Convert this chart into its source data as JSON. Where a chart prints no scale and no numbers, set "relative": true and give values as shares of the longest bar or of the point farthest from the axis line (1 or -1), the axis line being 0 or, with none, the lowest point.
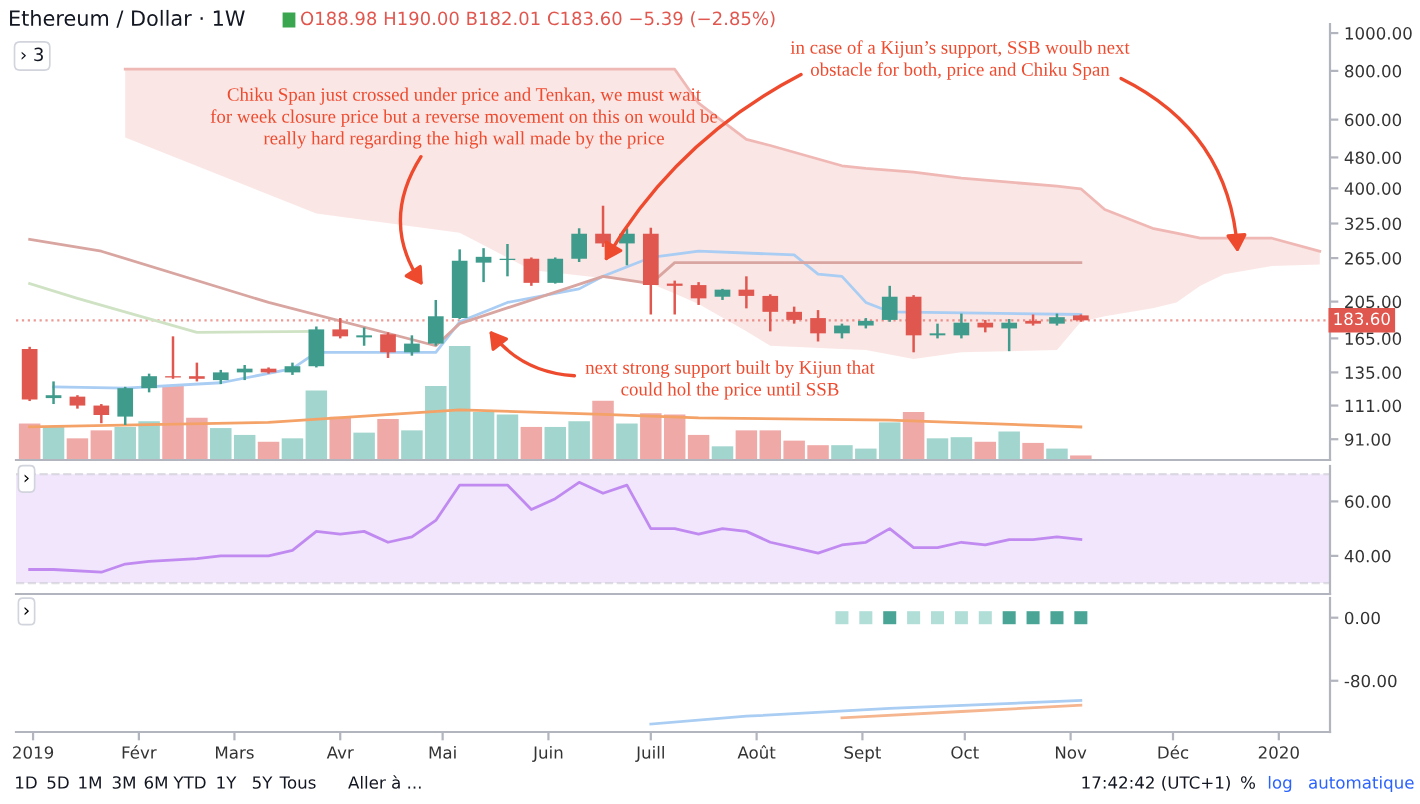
{
  "chart_data": [
    {
      "type": "candlestick",
      "title": "Ethereum / Dollar · 1W",
      "subtitle": "O188.98 H190.00 B182.01 C183.60 −5.39 (−2.85%)",
      "x": [
        "2018-12-31",
        "2019-01-07",
        "2019-01-14",
        "2019-01-21",
        "2019-01-28",
        "2019-02-04",
        "2019-02-11",
        "2019-02-18",
        "2019-02-25",
        "2019-03-04",
        "2019-03-11",
        "2019-03-18",
        "2019-03-25",
        "2019-04-01",
        "2019-04-08",
        "2019-04-15",
        "2019-04-22",
        "2019-04-29",
        "2019-05-06",
        "2019-05-13",
        "2019-05-20",
        "2019-05-27",
        "2019-06-03",
        "2019-06-10",
        "2019-06-17",
        "2019-06-24",
        "2019-07-01",
        "2019-07-08",
        "2019-07-15",
        "2019-07-22",
        "2019-07-29",
        "2019-08-05",
        "2019-08-12",
        "2019-08-19",
        "2019-08-26",
        "2019-09-02",
        "2019-09-09",
        "2019-09-16",
        "2019-09-23",
        "2019-09-30",
        "2019-10-07",
        "2019-10-14",
        "2019-10-21",
        "2019-10-28",
        "2019-11-04"
      ],
      "ohlc": [
        [
          155,
          157,
          114,
          115
        ],
        [
          116,
          128,
          112,
          118
        ],
        [
          117,
          118,
          109,
          111
        ],
        [
          111,
          112,
          100,
          105
        ],
        [
          104,
          124,
          99,
          123
        ],
        [
          123,
          134,
          120,
          132
        ],
        [
          132,
          167,
          130,
          131
        ],
        [
          132,
          143,
          128,
          130
        ],
        [
          129,
          137,
          126,
          135
        ],
        [
          135,
          141,
          129,
          138
        ],
        [
          138,
          139,
          134,
          135
        ],
        [
          135,
          143,
          133,
          140
        ],
        [
          140,
          177,
          139,
          174
        ],
        [
          174,
          186,
          165,
          167
        ],
        [
          166,
          176,
          158,
          168
        ],
        [
          169,
          171,
          147,
          152
        ],
        [
          152,
          168,
          149,
          160
        ],
        [
          160,
          207,
          158,
          188
        ],
        [
          186,
          279,
          185,
          261
        ],
        [
          258,
          281,
          230,
          267
        ],
        [
          262,
          288,
          238,
          264
        ],
        [
          264,
          266,
          225,
          229
        ],
        [
          229,
          266,
          228,
          264
        ],
        [
          264,
          316,
          259,
          306
        ],
        [
          306,
          361,
          283,
          289
        ],
        [
          289,
          316,
          254,
          306
        ],
        [
          306,
          317,
          190,
          226
        ],
        [
          228,
          232,
          190,
          225
        ],
        [
          226,
          230,
          201,
          209
        ],
        [
          211,
          221,
          207,
          220
        ],
        [
          220,
          238,
          197,
          212
        ],
        [
          212,
          214,
          172,
          193
        ],
        [
          193,
          199,
          180,
          184
        ],
        [
          186,
          195,
          162,
          170
        ],
        [
          170,
          180,
          165,
          178
        ],
        [
          178,
          186,
          175,
          183
        ],
        [
          184,
          225,
          182,
          211
        ],
        [
          211,
          213,
          152,
          168
        ],
        [
          168,
          180,
          165,
          170
        ],
        [
          168,
          191,
          165,
          181
        ],
        [
          181,
          184,
          171,
          176
        ],
        [
          175,
          185,
          153,
          181
        ],
        [
          183,
          190,
          178,
          180
        ],
        [
          180,
          191,
          178,
          187
        ],
        [
          188.98,
          190.0,
          182.01,
          183.6
        ]
      ],
      "colors": [
        "#e0574f",
        "#3f9c8c",
        "#e0574f",
        "#e0574f",
        "#3f9c8c",
        "#3f9c8c",
        "#e0574f",
        "#e0574f",
        "#3f9c8c",
        "#3f9c8c",
        "#e0574f",
        "#3f9c8c",
        "#3f9c8c",
        "#e0574f",
        "#3f9c8c",
        "#e0574f",
        "#3f9c8c",
        "#3f9c8c",
        "#3f9c8c",
        "#3f9c8c",
        "#3f9c8c",
        "#e0574f",
        "#3f9c8c",
        "#3f9c8c",
        "#e0574f",
        "#3f9c8c",
        "#e0574f",
        "#e0574f",
        "#e0574f",
        "#3f9c8c",
        "#e0574f",
        "#e0574f",
        "#e0574f",
        "#e0574f",
        "#3f9c8c",
        "#3f9c8c",
        "#3f9c8c",
        "#e0574f",
        "#3f9c8c",
        "#3f9c8c",
        "#e0574f",
        "#3f9c8c",
        "#e0574f",
        "#3f9c8c",
        "#e0574f"
      ],
      "series": [
        {
          "type": "line",
          "color": "#f0b8b4",
          "x": [
            "2019-01-28",
            "2019-03-25",
            "2019-05-06",
            "2019-05-27",
            "2019-07-01",
            "2019-07-08",
            "2019-07-15",
            "2019-07-29",
            "2019-08-05",
            "2019-08-26",
            "2019-09-02",
            "2019-09-16",
            "2019-09-30",
            "2019-10-28",
            "2019-11-04",
            "2019-11-11",
            "2019-11-25",
            "2019-12-02",
            "2019-12-09",
            "2019-12-16",
            "2019-12-30",
            "2020-01-13"
          ],
          "lower": [
            540,
            345,
            308,
            247,
            228,
            215,
            202,
            172,
            158,
            155,
            154,
            146,
            152,
            154,
            182,
            188,
            197,
            204,
            225,
            241,
            253,
            255
          ],
          "upper": [
            808,
            808,
            808,
            808,
            808,
            808,
            661,
            534,
            515,
            457,
            450,
            440,
            425,
            405,
            399,
            353,
            316,
            307,
            298,
            298,
            298,
            276
          ],
          "values": [
            808,
            808,
            808,
            808,
            808,
            808,
            661,
            534,
            515,
            457,
            450,
            440,
            425,
            405,
            399,
            353,
            316,
            307,
            298,
            298,
            298,
            276
          ]
        },
        {
          "type": "line",
          "color": "#a9cdf3",
          "x": [
            "2019-01-07",
            "2019-01-28",
            "2019-02-25",
            "2019-03-18",
            "2019-03-25",
            "2019-04-29",
            "2019-05-06",
            "2019-05-20",
            "2019-06-10",
            "2019-06-17",
            "2019-07-01",
            "2019-07-15",
            "2019-08-12",
            "2019-08-19",
            "2019-08-26",
            "2019-09-02",
            "2019-09-09",
            "2019-11-04"
          ],
          "values": [
            124,
            123,
            127,
            138,
            152,
            152,
            182,
            204,
            221,
            238,
            266,
            276,
            270,
            241,
            238,
            204,
            193,
            190
          ]
        },
        {
          "type": "line",
          "color": "#d9a5a0",
          "x": [
            "2018-12-31",
            "2019-01-21",
            "2019-03-11",
            "2019-04-29",
            "2019-05-06",
            "2019-06-17",
            "2019-07-01",
            "2019-07-08",
            "2019-11-04"
          ],
          "values": [
            296,
            276,
            204,
            158,
            180,
            238,
            228,
            258,
            258
          ]
        },
        {
          "type": "line",
          "color": "#cfe3c4",
          "x": [
            "2018-12-31",
            "2019-01-14",
            "2019-02-18",
            "2019-03-25"
          ],
          "values": [
            228,
            209,
            171,
            172
          ]
        }
      ],
      "ref_lines": [
        {
          "axis": "y",
          "value": 183.6,
          "label": "183.60",
          "color": "#e0574f",
          "line_style": "dotted"
        }
      ],
      "annotations": [
        "Chiku Span just crossed under price and Tenkan, we must wait\nfor week closure price but a reverse movement on this on would be\nreally hard regarding the high wall made by the price",
        "in case of a Kijun’s support, SSB woulb next\nobstacle for both, price and Chiku Span",
        "next strong support built by Kijun that\ncould hol the price until SSB",
        "› 3"
      ],
      "log": "y",
      "xlim": [
        "2018-12-27",
        "2020-01-16"
      ],
      "ylim": [
        80.5,
        1055
      ],
      "yticks": [
        {
          "value": 1000,
          "label": "1000.00"
        },
        {
          "value": 800,
          "label": "800.00"
        },
        {
          "value": 600,
          "label": "600.00"
        },
        {
          "value": 480,
          "label": "480.00"
        },
        {
          "value": 400,
          "label": "400.00"
        },
        {
          "value": 325,
          "label": "325.00"
        },
        {
          "value": 265,
          "label": "265.00"
        },
        {
          "value": 205,
          "label": "205.00"
        },
        {
          "value": 165,
          "label": "165.00"
        },
        {
          "value": 135,
          "label": "135.00"
        },
        {
          "value": 111,
          "label": "111.00"
        },
        {
          "value": 91,
          "label": "91.00"
        }
      ],
      "tick_labels": "y"
    },
    {
      "type": "bar",
      "relative": true,
      "tick_labels": false,
      "xlim": [
        "2018-12-27",
        "2020-01-16"
      ],
      "x": [
        "2018-12-31",
        "2019-01-07",
        "2019-01-14",
        "2019-01-21",
        "2019-01-28",
        "2019-02-04",
        "2019-02-11",
        "2019-02-18",
        "2019-02-25",
        "2019-03-04",
        "2019-03-11",
        "2019-03-18",
        "2019-03-25",
        "2019-04-01",
        "2019-04-08",
        "2019-04-15",
        "2019-04-22",
        "2019-04-29",
        "2019-05-06",
        "2019-05-13",
        "2019-05-20",
        "2019-05-27",
        "2019-06-03",
        "2019-06-10",
        "2019-06-17",
        "2019-06-24",
        "2019-07-01",
        "2019-07-08",
        "2019-07-15",
        "2019-07-22",
        "2019-07-29",
        "2019-08-05",
        "2019-08-12",
        "2019-08-19",
        "2019-08-26",
        "2019-09-02",
        "2019-09-09",
        "2019-09-16",
        "2019-09-23",
        "2019-09-30",
        "2019-10-07",
        "2019-10-14",
        "2019-10-21",
        "2019-10-28",
        "2019-11-04"
      ],
      "series": [
        {
          "type": "bar",
          "values": [
            0.32,
            0.29,
            0.19,
            0.26,
            0.29,
            0.34,
            0.65,
            0.37,
            0.28,
            0.22,
            0.16,
            0.19,
            0.61,
            0.38,
            0.24,
            0.36,
            0.26,
            0.65,
            1,
            0.42,
            0.4,
            0.29,
            0.29,
            0.34,
            0.52,
            0.32,
            0.41,
            0.4,
            0.22,
            0.12,
            0.26,
            0.26,
            0.17,
            0.13,
            0.13,
            0.1,
            0.33,
            0.42,
            0.19,
            0.2,
            0.16,
            0.25,
            0.15,
            0.1,
            0.04
          ],
          "colors": [
            "#efaaa8",
            "#a1d5ce",
            "#efaaa8",
            "#efaaa8",
            "#a1d5ce",
            "#a1d5ce",
            "#efaaa8",
            "#efaaa8",
            "#a1d5ce",
            "#a1d5ce",
            "#efaaa8",
            "#a1d5ce",
            "#a1d5ce",
            "#efaaa8",
            "#a1d5ce",
            "#efaaa8",
            "#a1d5ce",
            "#a1d5ce",
            "#a1d5ce",
            "#a1d5ce",
            "#a1d5ce",
            "#efaaa8",
            "#a1d5ce",
            "#a1d5ce",
            "#efaaa8",
            "#a1d5ce",
            "#efaaa8",
            "#efaaa8",
            "#efaaa8",
            "#a1d5ce",
            "#efaaa8",
            "#efaaa8",
            "#efaaa8",
            "#efaaa8",
            "#a1d5ce",
            "#a1d5ce",
            "#a1d5ce",
            "#efaaa8",
            "#a1d5ce",
            "#a1d5ce",
            "#efaaa8",
            "#a1d5ce",
            "#efaaa8",
            "#a1d5ce",
            "#efaaa8"
          ]
        },
        {
          "type": "line",
          "color": "#f4a267",
          "x": [
            "2018-12-31",
            "2019-03-11",
            "2019-05-06",
            "2019-06-17",
            "2019-07-15",
            "2019-09-09",
            "2019-11-04"
          ],
          "values": [
            0.29,
            0.33,
            0.44,
            0.4,
            0.37,
            0.35,
            0.29
          ]
        }
      ]
    },
    {
      "type": "line",
      "xlim": [
        "2018-12-27",
        "2020-01-16"
      ],
      "ylim": [
        26,
        73
      ],
      "tick_labels": "y",
      "yticks": [
        {
          "value": 60,
          "label": "60.00"
        },
        {
          "value": 40,
          "label": "40.00"
        }
      ],
      "bands": [
        {
          "axis": "y",
          "from": 30,
          "to": 70,
          "color": "#f1e6fc"
        }
      ],
      "ref_lines": [
        {
          "axis": "y",
          "value": 30,
          "color": "#c9c9d0",
          "line_style": "dashed"
        },
        {
          "axis": "y",
          "value": 70,
          "color": "#c9c9d0",
          "line_style": "dashed"
        }
      ],
      "annotations": [
        "›"
      ],
      "series": [
        {
          "color": "#c08af0",
          "x": [
            "2018-12-31",
            "2019-01-07",
            "2019-01-21",
            "2019-01-28",
            "2019-02-04",
            "2019-02-18",
            "2019-02-25",
            "2019-03-11",
            "2019-03-18",
            "2019-03-25",
            "2019-04-01",
            "2019-04-08",
            "2019-04-15",
            "2019-04-22",
            "2019-04-29",
            "2019-05-06",
            "2019-05-20",
            "2019-05-27",
            "2019-06-03",
            "2019-06-10",
            "2019-06-17",
            "2019-06-24",
            "2019-07-01",
            "2019-07-08",
            "2019-07-15",
            "2019-07-22",
            "2019-07-29",
            "2019-08-05",
            "2019-08-12",
            "2019-08-19",
            "2019-08-26",
            "2019-09-02",
            "2019-09-09",
            "2019-09-16",
            "2019-09-23",
            "2019-09-30",
            "2019-10-07",
            "2019-10-14",
            "2019-10-21",
            "2019-10-28",
            "2019-11-04"
          ],
          "values": [
            35,
            35,
            34,
            37,
            38,
            39,
            40,
            40,
            42,
            49,
            48,
            49,
            45,
            47,
            53,
            66,
            66,
            57,
            61,
            67,
            63,
            66,
            50,
            50,
            48,
            50,
            49,
            45,
            43,
            41,
            44,
            45,
            50,
            43,
            43,
            45,
            44,
            46,
            46,
            47,
            46
          ]
        }
      ]
    },
    {
      "type": "line",
      "xlim": [
        "2018-12-27",
        "2020-01-16"
      ],
      "ylim": [
        -145,
        25
      ],
      "yticks": [
        {
          "value": 0,
          "label": "0.00"
        },
        {
          "value": -80,
          "label": "-80.00"
        }
      ],
      "xticks": [
        {
          "value": "2019-01-01",
          "label": "2019"
        },
        {
          "value": "2019-02-01",
          "label": "Févr"
        },
        {
          "value": "2019-03-01",
          "label": "Mars"
        },
        {
          "value": "2019-04-01",
          "label": "Avr"
        },
        {
          "value": "2019-05-01",
          "label": "Mai"
        },
        {
          "value": "2019-06-01",
          "label": "Juin"
        },
        {
          "value": "2019-07-01",
          "label": "Juill"
        },
        {
          "value": "2019-08-01",
          "label": "Août"
        },
        {
          "value": "2019-09-01",
          "label": "Sept"
        },
        {
          "value": "2019-10-01",
          "label": "Oct"
        },
        {
          "value": "2019-11-01",
          "label": "Nov"
        },
        {
          "value": "2019-12-01",
          "label": "Déc"
        },
        {
          "value": "2020-01-01",
          "label": "2020"
        }
      ],
      "annotations": [
        "›",
        "1D",
        "5D",
        "1M",
        "3M",
        "6M",
        "YTD",
        "1Y",
        "5Y",
        "Tous",
        "Aller à ...",
        "17:42:42 (UTC+1)",
        "%",
        "log",
        "automatique"
      ],
      "series": [
        {
          "type": "scatter",
          "marker": "square",
          "x": [
            "2019-08-26",
            "2019-09-02",
            "2019-09-09",
            "2019-09-16",
            "2019-09-23",
            "2019-09-30",
            "2019-10-07",
            "2019-10-14",
            "2019-10-21",
            "2019-10-28",
            "2019-11-04"
          ],
          "values": [
            0,
            0,
            0,
            0,
            0,
            0,
            0,
            0,
            0,
            0,
            0
          ],
          "colors": [
            "#b2ded8",
            "#b2ded8",
            "#4aa596",
            "#b2ded8",
            "#b2ded8",
            "#b2ded8",
            "#b2ded8",
            "#4aa596",
            "#4aa596",
            "#4aa596",
            "#4aa596"
          ]
        },
        {
          "type": "line",
          "color": "#a9cdf3",
          "x": [
            "2019-07-01",
            "2019-07-29",
            "2019-09-09",
            "2019-11-04"
          ],
          "values": [
            -135,
            -125,
            -115,
            -105
          ]
        },
        {
          "type": "line",
          "color": "#f5b58f",
          "x": [
            "2019-08-26",
            "2019-09-30",
            "2019-11-04"
          ],
          "values": [
            -127,
            -119,
            -111
          ]
        }
      ]
    }
  ]
}
